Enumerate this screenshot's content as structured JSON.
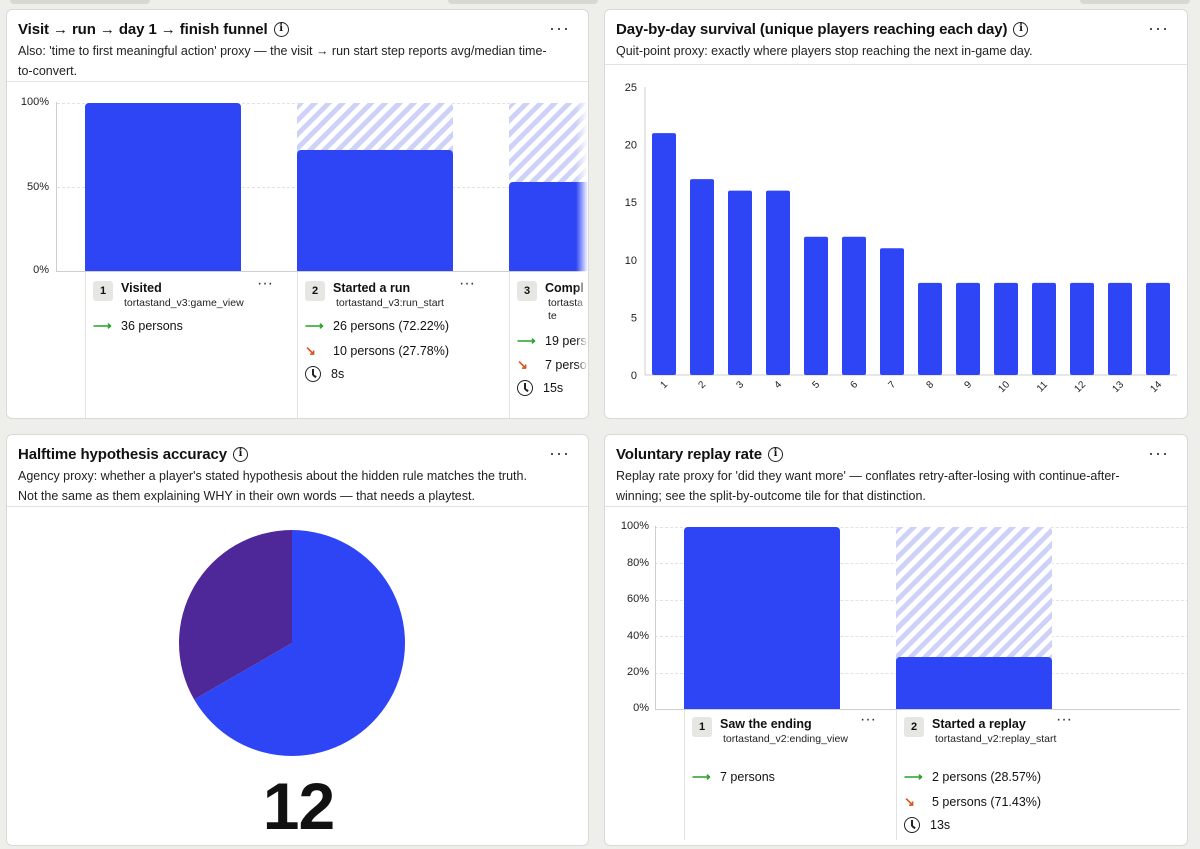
{
  "colors": {
    "bar": "#2d45f5",
    "pie_main": "#2d45f5",
    "pie_secondary": "#4e2898",
    "increase": "#2ca02c",
    "decrease": "#d9541e"
  },
  "funnel_card": {
    "title": "Visit → run → day 1 → finish funnel",
    "description": "Also: 'time to first meaningful action' proxy — the visit → run start step reports avg/median time-to-convert.",
    "more_label": "···",
    "y_ticks": [
      "100%",
      "50%",
      "0%"
    ],
    "steps": [
      {
        "num": "1",
        "name": "Visited",
        "event": "tortastand_v3:game_view",
        "converted": "36 persons",
        "dropped": "",
        "time": "",
        "percent": 100
      },
      {
        "num": "2",
        "name": "Started a run",
        "event": "tortastand_v3:run_start",
        "converted": "26 persons (72.22%)",
        "dropped": "10 persons (27.78%)",
        "time": "8s",
        "percent": 72.22
      },
      {
        "num": "3",
        "name": "Compl",
        "event": "tortasta te",
        "converted": "19 pers",
        "dropped": "7 perso",
        "time": "15s",
        "percent": 52.78
      }
    ]
  },
  "survival_card": {
    "title": "Day-by-day survival (unique players reaching each day)",
    "description": "Quit-point proxy: exactly where players stop reaching the next in-game day.",
    "more_label": "···"
  },
  "halftime_card": {
    "title": "Halftime hypothesis accuracy",
    "description": "Agency proxy: whether a player's stated hypothesis about the hidden rule matches the truth. Not the same as them explaining WHY in their own words — that needs a playtest.",
    "more_label": "···",
    "big_number": "12"
  },
  "replay_card": {
    "title": "Voluntary replay rate",
    "description": "Replay rate proxy for 'did they want more' — conflates retry-after-losing with continue-after-winning; see the split-by-outcome tile for that distinction.",
    "more_label": "···",
    "y_ticks": [
      "100%",
      "80%",
      "60%",
      "40%",
      "20%",
      "0%"
    ],
    "steps": [
      {
        "num": "1",
        "name": "Saw the ending",
        "event": "tortastand_v2:ending_view",
        "converted": "7 persons",
        "dropped": "",
        "time": "",
        "percent": 100
      },
      {
        "num": "2",
        "name": "Started a replay",
        "event": "tortastand_v2:replay_start",
        "converted": "2 persons (28.57%)",
        "dropped": "5 persons (71.43%)",
        "time": "13s",
        "percent": 28.57
      }
    ]
  },
  "chart_data": [
    {
      "type": "bar",
      "categories": [
        "1",
        "2",
        "3",
        "4",
        "5",
        "6",
        "7",
        "8",
        "9",
        "10",
        "11",
        "12",
        "13",
        "14"
      ],
      "values": [
        21,
        17,
        16,
        16,
        12,
        12,
        11,
        8,
        8,
        8,
        8,
        8,
        8,
        8
      ],
      "title": "Day-by-day survival (unique players reaching each day)",
      "y_ticks": [
        "25",
        "20",
        "15",
        "10",
        "5",
        "0"
      ],
      "ylim": [
        0,
        25
      ],
      "grid": false
    },
    {
      "type": "pie",
      "values": [
        8,
        4
      ],
      "colors": [
        "#2d45f5",
        "#4e2898"
      ],
      "total": "12"
    }
  ]
}
